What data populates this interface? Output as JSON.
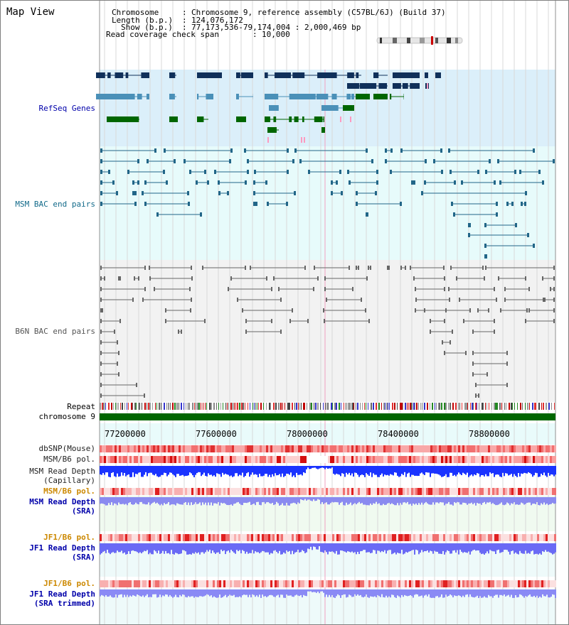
{
  "app": {
    "title": "Map View"
  },
  "info": {
    "chromosome_label": "Chromosome",
    "chromosome_value": "Chromosome 9, reference assembly (C57BL/6J) (Build 37)",
    "length_label": "Length (b.p.)",
    "length_value": "124,076,172",
    "show_label": "Show (b.p.)",
    "show_value": "77,173,536-79,174,004 : 2,000,469 bp",
    "span_label": "Read coverage check span",
    "span_value": "10,000"
  },
  "tracks": {
    "refseq": "RefSeq Genes",
    "msm_bac": "MSM BAC end pairs",
    "b6n_bac": "B6N BAC end pairs",
    "repeat": "Repeat",
    "chromosome": "chromosome 9"
  },
  "axis": {
    "ticks": [
      "77200000",
      "77600000",
      "78000000",
      "78400000",
      "78800000"
    ]
  },
  "lower_tracks": {
    "dbsnp": "dbSNP(Mouse)",
    "msm_b6_pol_1": "MSM/B6 pol.",
    "msm_depth_cap_1": "MSM Read Depth",
    "msm_depth_cap_2": "(Capillary)",
    "msm_b6_pol_2": "MSM/B6 pol.",
    "msm_depth_sra_1": "MSM Read Depth",
    "msm_depth_sra_2": "(SRA)",
    "jf1_b6_pol_1": "JF1/B6 pol.",
    "jf1_depth_sra_1": "JF1 Read Depth",
    "jf1_depth_sra_2": "(SRA)",
    "jf1_b6_pol_2": "JF1/B6 pol.",
    "jf1_depth_trim_1": "JF1 Read Depth",
    "jf1_depth_trim_2": "(SRA trimmed)"
  },
  "colors": {
    "refseq_bg": "#dbeffa",
    "msm_bg": "#e7fbfb",
    "b6n_bg": "#f2f2f2",
    "navy": "#10305a",
    "steel": "#4a90b8",
    "green": "#006600",
    "msm_line": "#226688",
    "gray_line": "#666666",
    "label_blue": "#0000aa",
    "label_teal": "#126a8a",
    "label_orange": "#cc8800"
  }
}
